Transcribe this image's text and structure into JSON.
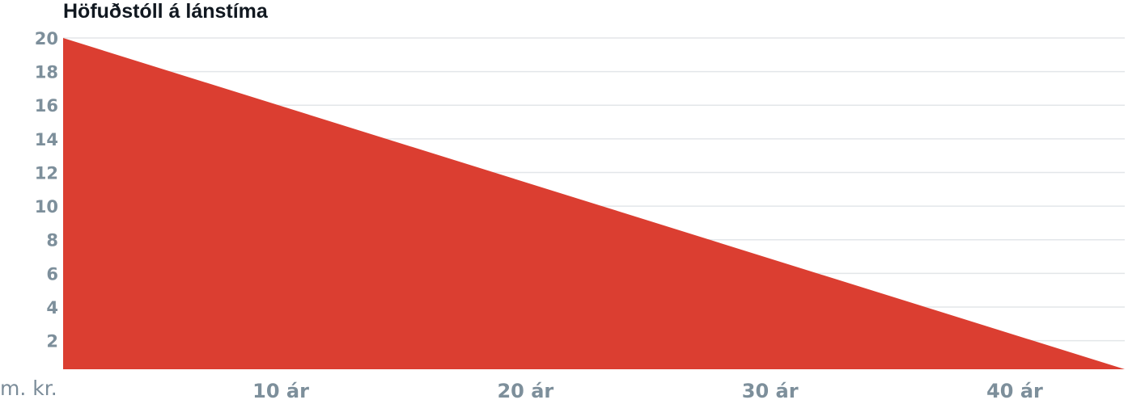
{
  "chart_data": {
    "type": "area",
    "title": "Höfuðstóll á lánstíma",
    "unit_label": "m. kr.",
    "x_tick_labels": [
      "10 ár",
      "20 ár",
      "30 ár",
      "40 ár"
    ],
    "x_tick_values": [
      10,
      20,
      30,
      40
    ],
    "y_tick_labels": [
      "2",
      "4",
      "6",
      "8",
      "10",
      "12",
      "14",
      "16",
      "18",
      "20"
    ],
    "y_tick_values": [
      2,
      4,
      6,
      8,
      10,
      12,
      14,
      16,
      18,
      20
    ],
    "xlim": [
      1.1,
      44.5
    ],
    "ylim": [
      0.3,
      20
    ],
    "grid": true,
    "series": [
      {
        "x": [
          1.1,
          44.5
        ],
        "y": [
          20,
          0.3
        ]
      }
    ],
    "colors": {
      "area": "#db3e31",
      "grid": "#e3e6e9",
      "tick": "#7d8f9b",
      "title": "#111820"
    }
  }
}
